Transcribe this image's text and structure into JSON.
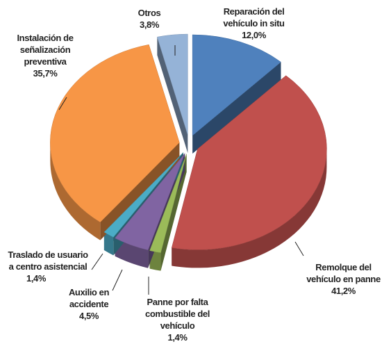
{
  "chart_data": {
    "type": "pie",
    "categories": [
      "Reparación del vehículo in situ",
      "Remolque del vehículo en panne",
      "Panne por falta combustible del vehículo",
      "Auxilio en accidente",
      "Traslado de usuario a centro asistencial",
      "Instalación de señalización preventiva",
      "Otros"
    ],
    "values": [
      12.0,
      41.2,
      1.4,
      4.5,
      1.4,
      35.7,
      3.8
    ],
    "value_labels": [
      "12,0%",
      "41,2%",
      "1,4%",
      "4,5%",
      "1,4%",
      "35,7%",
      "3,8%"
    ],
    "colors": [
      "#4f81bd",
      "#c0504d",
      "#9bbb59",
      "#8064a2",
      "#4bacc6",
      "#f79646",
      "#95b3d7"
    ]
  }
}
